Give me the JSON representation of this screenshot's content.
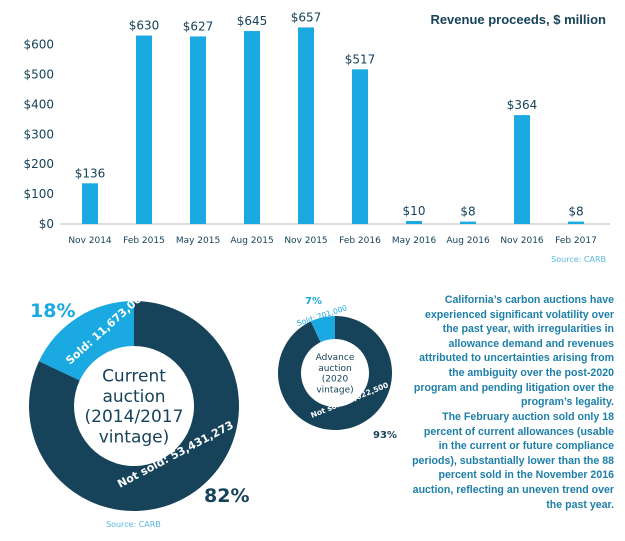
{
  "chart_data": [
    {
      "type": "bar",
      "title": "Revenue proceeds, $ million",
      "source": "Source: CARB",
      "categories": [
        "Nov 2014",
        "Feb 2015",
        "May 2015",
        "Aug 2015",
        "Nov 2015",
        "Feb 2016",
        "May 2016",
        "Aug 2016",
        "Nov 2016",
        "Feb 2017"
      ],
      "values": [
        136,
        630,
        627,
        645,
        657,
        517,
        10,
        8,
        364,
        8
      ],
      "data_labels": [
        "$136",
        "$630",
        "$627",
        "$645",
        "$657",
        "$517",
        "$10",
        "$8",
        "$364",
        "$8"
      ],
      "yticks": [
        "$0",
        "$100",
        "$200",
        "$300",
        "$400",
        "$500",
        "$600"
      ],
      "ylim": [
        0,
        660
      ],
      "grid": false,
      "color": "#1aa9e0"
    },
    {
      "type": "pie",
      "variant": "donut",
      "center_label": [
        "Current",
        "auction",
        "(2014/2017",
        "vintage)"
      ],
      "slices": [
        {
          "label": "Sold: 11,673,000",
          "percent_label": "18%",
          "value": 18,
          "color": "#1aa9e0"
        },
        {
          "label": "Not sold: 53,431,273",
          "percent_label": "82%",
          "value": 82,
          "color": "#17435a"
        }
      ],
      "source": "Source: CARB"
    },
    {
      "type": "pie",
      "variant": "donut",
      "center_label": [
        "Advance",
        "auction",
        "(2020",
        "vintage)"
      ],
      "slices": [
        {
          "label": "Sold: 701,000",
          "percent_label": "7%",
          "value": 7,
          "color": "#1aa9e0"
        },
        {
          "label": "Not sold: 9,022,500",
          "percent_label": "93%",
          "value": 93,
          "color": "#17435a"
        }
      ]
    }
  ],
  "text": {
    "p1": "California’s carbon auctions have experienced significant volatility over the past year, with irregularities in allowance demand and revenues attributed to uncertainties arising from the ambiguity over the post-2020 program and pending litigation over the program’s legality.",
    "p2": "The February auction sold only 18 percent of current allowances (usable in the current or future compliance periods), substantially lower than the 88 percent sold in the November 2016 auction, reflecting an uneven trend over the past year."
  }
}
